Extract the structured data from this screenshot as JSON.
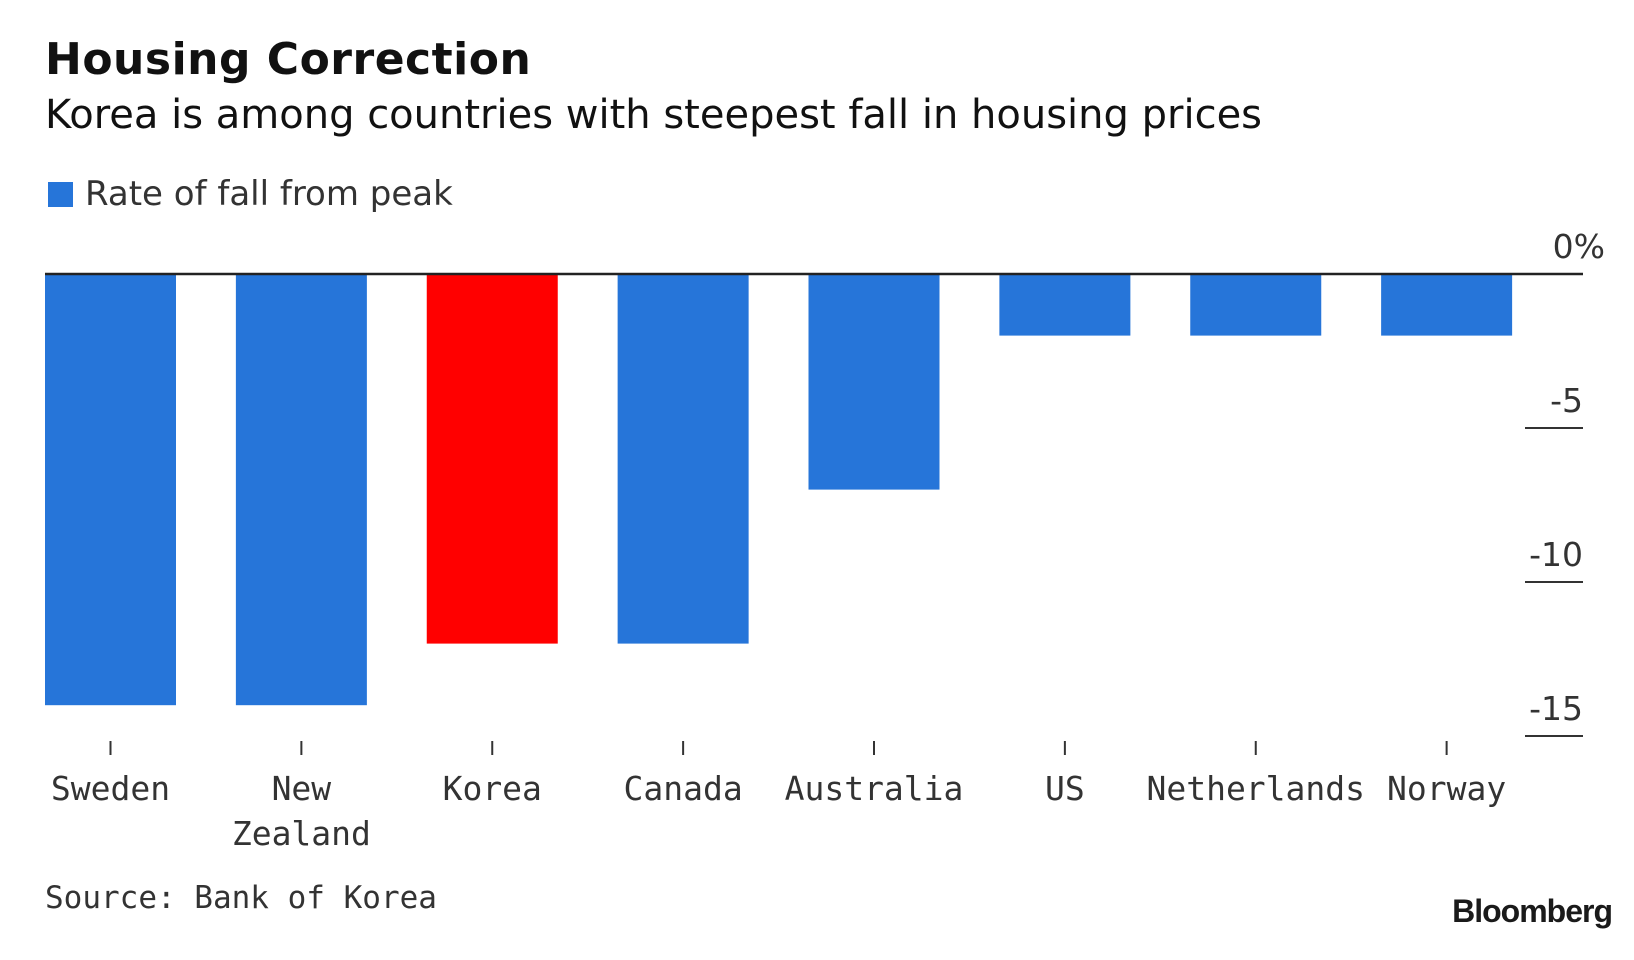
{
  "header": {
    "title": "Housing Correction",
    "subtitle": "Korea is among countries with steepest fall in housing prices"
  },
  "legend": {
    "label": "Rate of fall from peak",
    "color": "#2675d9"
  },
  "footer": {
    "source": "Source: Bank of Korea",
    "brand": "Bloomberg"
  },
  "colors": {
    "default_bar": "#2675d9",
    "highlight_bar": "#ff0000",
    "axis": "#222222"
  },
  "chart_data": {
    "type": "bar",
    "title": "Housing Correction",
    "subtitle": "Korea is among countries with steepest fall in housing prices",
    "categories": [
      "Sweden",
      "New Zealand",
      "Korea",
      "Canada",
      "Australia",
      "US",
      "Netherlands",
      "Norway"
    ],
    "category_label_lines": [
      [
        "Sweden"
      ],
      [
        "New",
        "Zealand"
      ],
      [
        "Korea"
      ],
      [
        "Canada"
      ],
      [
        "Australia"
      ],
      [
        "US"
      ],
      [
        "Netherlands"
      ],
      [
        "Norway"
      ]
    ],
    "series": [
      {
        "name": "Rate of fall from peak",
        "values": [
          -14.0,
          -14.0,
          -12.0,
          -12.0,
          -7.0,
          -2.0,
          -2.0,
          -2.0
        ],
        "highlight": [
          "Korea"
        ]
      }
    ],
    "xlabel": "",
    "ylabel": "",
    "ylim": [
      -15,
      0
    ],
    "yticks": [
      0,
      -5,
      -10,
      -15
    ],
    "ytick_labels": [
      "0%",
      "-5",
      "-10",
      "-15"
    ],
    "y_axis_position": "right",
    "legend_position": "top-left",
    "grid": false,
    "source": "Source: Bank of Korea"
  }
}
